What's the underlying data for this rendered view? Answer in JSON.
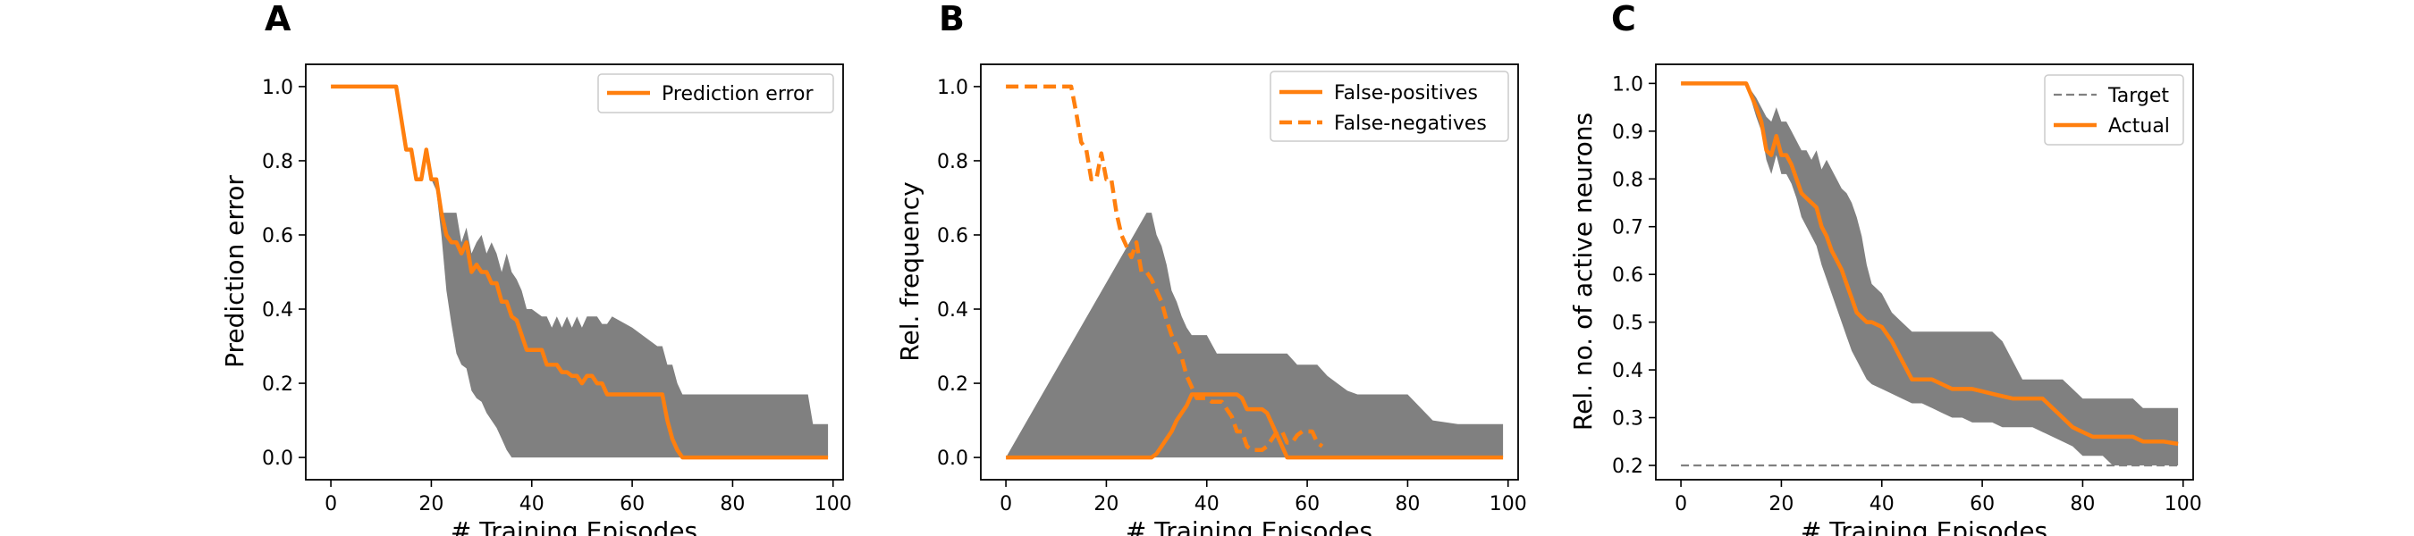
{
  "colors": {
    "actual": "#ff7f0e",
    "band": "#808080",
    "target": "#808080",
    "axis": "#000000"
  },
  "chart_data": [
    {
      "panel": "A",
      "type": "line",
      "title": "",
      "xlabel": "# Training Episodes",
      "ylabel": "Prediction error",
      "xlim": [
        -5,
        102
      ],
      "ylim": [
        -0.06,
        1.06
      ],
      "xticks": [
        0,
        20,
        40,
        60,
        80,
        100
      ],
      "xtick_labels": [
        "0",
        "20",
        "40",
        "60",
        "80",
        "100"
      ],
      "yticks": [
        0.0,
        0.2,
        0.4,
        0.6,
        0.8,
        1.0
      ],
      "ytick_labels": [
        "0.0",
        "0.2",
        "0.4",
        "0.6",
        "0.8",
        "1.0"
      ],
      "legend": [
        "Prediction error"
      ],
      "legend_position": "top-right",
      "series": [
        {
          "name": "Prediction error",
          "style": "solid",
          "x": [
            0,
            13,
            15,
            16,
            17,
            18,
            19,
            20,
            21,
            22,
            23,
            24,
            25,
            26,
            27,
            28,
            29,
            30,
            31,
            32,
            33,
            34,
            35,
            36,
            37,
            38,
            39,
            40,
            42,
            43,
            44,
            45,
            46,
            47,
            48,
            49,
            50,
            51,
            52,
            53,
            54,
            55,
            56,
            60,
            65,
            66,
            67,
            68,
            69,
            70,
            80,
            90,
            99
          ],
          "y": [
            1.0,
            1.0,
            0.83,
            0.83,
            0.75,
            0.75,
            0.83,
            0.75,
            0.75,
            0.66,
            0.6,
            0.58,
            0.58,
            0.55,
            0.58,
            0.5,
            0.52,
            0.5,
            0.5,
            0.47,
            0.47,
            0.42,
            0.42,
            0.38,
            0.37,
            0.33,
            0.29,
            0.29,
            0.29,
            0.25,
            0.25,
            0.25,
            0.23,
            0.23,
            0.22,
            0.22,
            0.2,
            0.22,
            0.22,
            0.2,
            0.2,
            0.17,
            0.17,
            0.17,
            0.17,
            0.17,
            0.1,
            0.05,
            0.02,
            0.0,
            0.0,
            0.0,
            0.0
          ]
        }
      ],
      "band": {
        "x": [
          0,
          13,
          15,
          16,
          17,
          18,
          19,
          20,
          21,
          22,
          23,
          24,
          25,
          26,
          27,
          28,
          29,
          30,
          31,
          32,
          33,
          34,
          35,
          36,
          37,
          38,
          39,
          40,
          42,
          43,
          44,
          45,
          46,
          47,
          48,
          49,
          50,
          51,
          52,
          53,
          54,
          55,
          56,
          60,
          65,
          66,
          67,
          68,
          69,
          70,
          80,
          90,
          95,
          96,
          99
        ],
        "lower": [
          1.0,
          1.0,
          0.83,
          0.83,
          0.75,
          0.75,
          0.8,
          0.75,
          0.72,
          0.6,
          0.45,
          0.36,
          0.28,
          0.25,
          0.24,
          0.18,
          0.16,
          0.15,
          0.12,
          0.1,
          0.08,
          0.05,
          0.02,
          0.0,
          0.0,
          0.0,
          0.0,
          0.0,
          0.0,
          0.0,
          0.0,
          0.0,
          0.0,
          0.0,
          0.0,
          0.0,
          0.0,
          0.0,
          0.0,
          0.0,
          0.0,
          0.0,
          0.0,
          0.0,
          0.0,
          0.0,
          0.0,
          0.0,
          0.0,
          0.0,
          0.0,
          0.0,
          0.0,
          0.0,
          0.0
        ],
        "upper": [
          1.0,
          1.0,
          0.83,
          0.83,
          0.75,
          0.75,
          0.83,
          0.75,
          0.75,
          0.66,
          0.66,
          0.66,
          0.66,
          0.58,
          0.62,
          0.55,
          0.58,
          0.6,
          0.55,
          0.58,
          0.55,
          0.5,
          0.55,
          0.5,
          0.48,
          0.45,
          0.4,
          0.4,
          0.38,
          0.38,
          0.35,
          0.38,
          0.35,
          0.38,
          0.35,
          0.38,
          0.35,
          0.38,
          0.38,
          0.38,
          0.36,
          0.36,
          0.38,
          0.35,
          0.3,
          0.3,
          0.25,
          0.25,
          0.2,
          0.17,
          0.17,
          0.17,
          0.17,
          0.09,
          0.09
        ]
      }
    },
    {
      "panel": "B",
      "type": "line",
      "title": "",
      "xlabel": "# Training Episodes",
      "ylabel": "Rel. frequency",
      "xlim": [
        -5,
        102
      ],
      "ylim": [
        -0.06,
        1.06
      ],
      "xticks": [
        0,
        20,
        40,
        60,
        80,
        100
      ],
      "xtick_labels": [
        "0",
        "20",
        "40",
        "60",
        "80",
        "100"
      ],
      "yticks": [
        0.0,
        0.2,
        0.4,
        0.6,
        0.8,
        1.0
      ],
      "ytick_labels": [
        "0.0",
        "0.2",
        "0.4",
        "0.6",
        "0.8",
        "1.0"
      ],
      "legend": [
        "False-positives",
        "False-negatives"
      ],
      "legend_position": "top-right",
      "series": [
        {
          "name": "False-positives",
          "style": "solid",
          "x": [
            0,
            28,
            29,
            30,
            31,
            32,
            33,
            34,
            35,
            36,
            37,
            38,
            40,
            44,
            45,
            46,
            47,
            48,
            49,
            50,
            51,
            52,
            53,
            54,
            55,
            56,
            60,
            70,
            80,
            90,
            99
          ],
          "y": [
            0.0,
            0.0,
            0.0,
            0.01,
            0.03,
            0.05,
            0.07,
            0.1,
            0.12,
            0.14,
            0.17,
            0.17,
            0.17,
            0.17,
            0.17,
            0.17,
            0.16,
            0.13,
            0.13,
            0.13,
            0.13,
            0.12,
            0.09,
            0.06,
            0.03,
            0.0,
            0.0,
            0.0,
            0.0,
            0.0,
            0.0
          ]
        },
        {
          "name": "False-negatives",
          "style": "dashed",
          "x": [
            0,
            13,
            14,
            15,
            16,
            17,
            18,
            19,
            20,
            21,
            22,
            23,
            24,
            25,
            26,
            27,
            28,
            29,
            30,
            31,
            32,
            33,
            34,
            35,
            36,
            37,
            38,
            39,
            40,
            41,
            42,
            43,
            44,
            45,
            46,
            47,
            48,
            49,
            50,
            51,
            52,
            53,
            54,
            55,
            56,
            57,
            58,
            59,
            60,
            61,
            62,
            63
          ],
          "y": [
            1.0,
            1.0,
            0.93,
            0.85,
            0.83,
            0.75,
            0.75,
            0.82,
            0.75,
            0.75,
            0.66,
            0.6,
            0.57,
            0.54,
            0.58,
            0.5,
            0.5,
            0.48,
            0.45,
            0.42,
            0.37,
            0.33,
            0.3,
            0.27,
            0.22,
            0.19,
            0.16,
            0.16,
            0.16,
            0.15,
            0.15,
            0.15,
            0.13,
            0.11,
            0.07,
            0.07,
            0.03,
            0.02,
            0.02,
            0.02,
            0.03,
            0.05,
            0.07,
            0.07,
            0.04,
            0.04,
            0.06,
            0.07,
            0.07,
            0.07,
            0.04,
            0.03
          ]
        }
      ],
      "band": {
        "x": [
          0,
          28,
          29,
          30,
          31,
          32,
          33,
          34,
          35,
          36,
          37,
          38,
          39,
          40,
          42,
          44,
          46,
          48,
          50,
          52,
          54,
          56,
          58,
          60,
          62,
          64,
          66,
          68,
          70,
          75,
          80,
          85,
          90,
          95,
          99
        ],
        "lower": [
          0.0,
          0.0,
          0.0,
          0.0,
          0.0,
          0.0,
          0.0,
          0.0,
          0.0,
          0.0,
          0.0,
          0.0,
          0.0,
          0.0,
          0.0,
          0.0,
          0.0,
          0.0,
          0.0,
          0.0,
          0.0,
          0.0,
          0.0,
          0.0,
          0.0,
          0.0,
          0.0,
          0.0,
          0.0,
          0.0,
          0.0,
          0.0,
          0.0,
          0.0,
          0.0
        ],
        "upper": [
          0.0,
          0.66,
          0.66,
          0.6,
          0.57,
          0.52,
          0.45,
          0.42,
          0.38,
          0.35,
          0.33,
          0.33,
          0.33,
          0.33,
          0.28,
          0.28,
          0.28,
          0.28,
          0.28,
          0.28,
          0.28,
          0.28,
          0.25,
          0.25,
          0.25,
          0.22,
          0.2,
          0.18,
          0.17,
          0.17,
          0.17,
          0.1,
          0.09,
          0.09,
          0.09
        ]
      }
    },
    {
      "panel": "C",
      "type": "line",
      "title": "",
      "xlabel": "# Training Episodes",
      "ylabel": "Rel. no. of active neurons",
      "xlim": [
        -5,
        102
      ],
      "ylim": [
        0.17,
        1.04
      ],
      "xticks": [
        0,
        20,
        40,
        60,
        80,
        100
      ],
      "xtick_labels": [
        "0",
        "20",
        "40",
        "60",
        "80",
        "100"
      ],
      "yticks": [
        0.2,
        0.3,
        0.4,
        0.5,
        0.6,
        0.7,
        0.8,
        0.9,
        1.0
      ],
      "ytick_labels": [
        "0.2",
        "0.3",
        "0.4",
        "0.5",
        "0.6",
        "0.7",
        "0.8",
        "0.9",
        "1.0"
      ],
      "legend": [
        "Target",
        "Actual"
      ],
      "legend_position": "top-right",
      "series": [
        {
          "name": "Target",
          "style": "dashed-thin",
          "x": [
            0,
            99
          ],
          "y": [
            0.2,
            0.2
          ]
        },
        {
          "name": "Actual",
          "style": "solid",
          "x": [
            0,
            13,
            15,
            16,
            17,
            18,
            19,
            20,
            21,
            22,
            23,
            24,
            25,
            26,
            27,
            28,
            29,
            30,
            31,
            32,
            33,
            34,
            35,
            36,
            37,
            38,
            40,
            42,
            44,
            46,
            48,
            50,
            52,
            54,
            56,
            58,
            60,
            62,
            64,
            66,
            68,
            70,
            72,
            74,
            76,
            78,
            80,
            82,
            84,
            86,
            88,
            90,
            92,
            94,
            96,
            99
          ],
          "y": [
            1.0,
            1.0,
            0.95,
            0.92,
            0.86,
            0.85,
            0.89,
            0.85,
            0.85,
            0.83,
            0.8,
            0.77,
            0.76,
            0.75,
            0.74,
            0.7,
            0.68,
            0.65,
            0.63,
            0.61,
            0.58,
            0.55,
            0.52,
            0.51,
            0.5,
            0.5,
            0.49,
            0.46,
            0.42,
            0.38,
            0.38,
            0.38,
            0.37,
            0.36,
            0.36,
            0.36,
            0.355,
            0.35,
            0.345,
            0.34,
            0.34,
            0.34,
            0.34,
            0.32,
            0.3,
            0.28,
            0.27,
            0.26,
            0.26,
            0.26,
            0.26,
            0.26,
            0.25,
            0.25,
            0.25,
            0.245
          ]
        }
      ],
      "band": {
        "x": [
          0,
          13,
          15,
          16,
          17,
          18,
          19,
          20,
          21,
          22,
          23,
          24,
          25,
          26,
          27,
          28,
          29,
          30,
          31,
          32,
          33,
          34,
          35,
          36,
          37,
          38,
          40,
          42,
          44,
          46,
          48,
          50,
          52,
          54,
          56,
          58,
          60,
          62,
          64,
          66,
          68,
          70,
          72,
          74,
          76,
          78,
          80,
          82,
          84,
          86,
          88,
          90,
          92,
          94,
          96,
          99
        ],
        "lower": [
          1.0,
          1.0,
          0.93,
          0.9,
          0.84,
          0.81,
          0.85,
          0.81,
          0.81,
          0.79,
          0.76,
          0.72,
          0.7,
          0.68,
          0.66,
          0.62,
          0.59,
          0.56,
          0.53,
          0.5,
          0.47,
          0.44,
          0.42,
          0.4,
          0.38,
          0.37,
          0.36,
          0.35,
          0.34,
          0.33,
          0.33,
          0.32,
          0.31,
          0.3,
          0.3,
          0.29,
          0.29,
          0.29,
          0.28,
          0.28,
          0.28,
          0.28,
          0.27,
          0.26,
          0.25,
          0.24,
          0.22,
          0.22,
          0.22,
          0.2,
          0.2,
          0.2,
          0.2,
          0.2,
          0.2,
          0.2
        ],
        "upper": [
          1.0,
          1.0,
          0.97,
          0.95,
          0.93,
          0.92,
          0.95,
          0.92,
          0.92,
          0.9,
          0.88,
          0.86,
          0.86,
          0.84,
          0.86,
          0.82,
          0.84,
          0.82,
          0.8,
          0.78,
          0.77,
          0.75,
          0.72,
          0.68,
          0.62,
          0.58,
          0.56,
          0.52,
          0.5,
          0.48,
          0.48,
          0.48,
          0.48,
          0.48,
          0.48,
          0.48,
          0.48,
          0.48,
          0.46,
          0.42,
          0.38,
          0.38,
          0.38,
          0.38,
          0.38,
          0.36,
          0.34,
          0.34,
          0.34,
          0.34,
          0.34,
          0.34,
          0.32,
          0.32,
          0.32,
          0.32
        ]
      }
    }
  ]
}
